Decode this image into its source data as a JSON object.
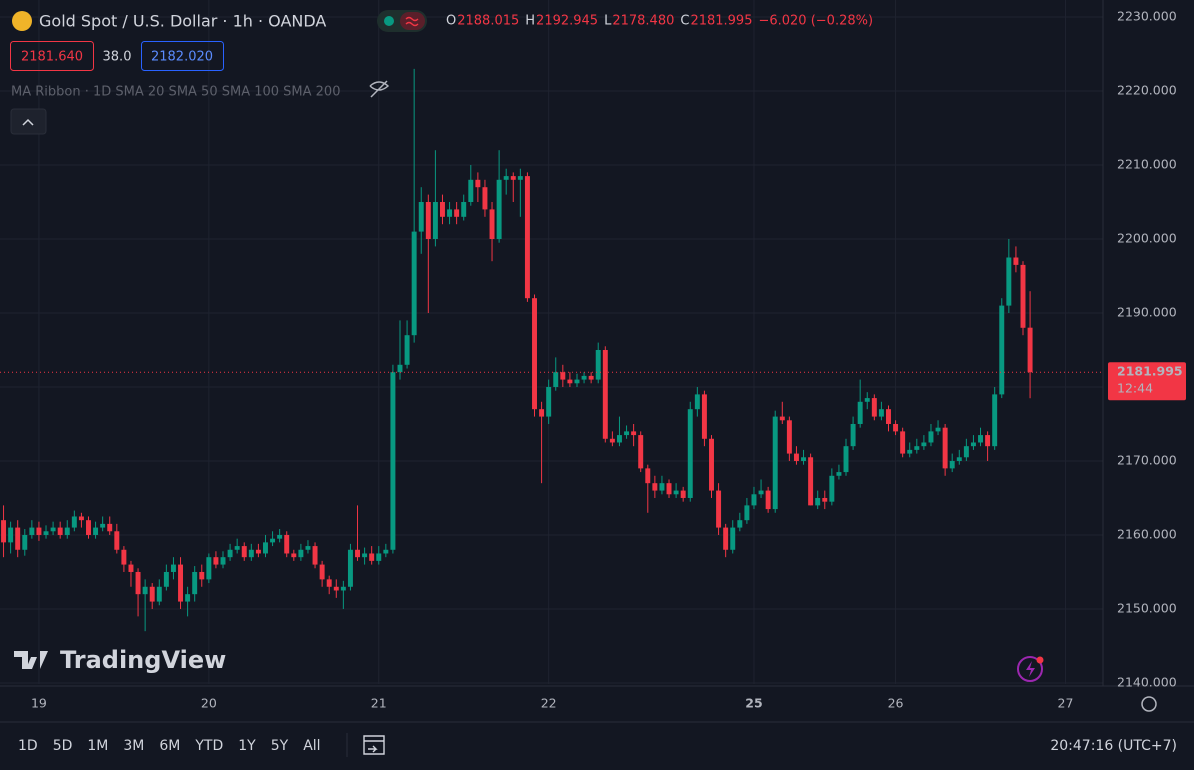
{
  "header": {
    "title": "Gold Spot / U.S. Dollar · 1h · OANDA",
    "legend": [
      {
        "key": "O",
        "value": "2188.015"
      },
      {
        "key": "H",
        "value": "2192.945"
      },
      {
        "key": "L",
        "value": "2178.480"
      },
      {
        "key": "C",
        "value": "2181.995"
      }
    ],
    "change": "−6.020 (−0.28%)",
    "bid": "2181.640",
    "spread": "38.0",
    "ask": "2182.020",
    "indicator": "MA Ribbon · 1D SMA 20 SMA 50 SMA 100 SMA 200"
  },
  "logo": "TradingView",
  "toolbar": {
    "ranges": [
      "1D",
      "5D",
      "1M",
      "3M",
      "6M",
      "YTD",
      "1Y",
      "5Y",
      "All"
    ],
    "clock": "20:47:16 (UTC+7)"
  },
  "chart_data": {
    "type": "candlestick",
    "up_color": "#089981",
    "down_color": "#f23645",
    "grid": true,
    "countdown": "12:44",
    "xlim": [
      -0.5,
      155.3
    ],
    "xticks": [
      {
        "value": 5,
        "label": "19"
      },
      {
        "value": 29,
        "label": "20"
      },
      {
        "value": 53,
        "label": "21"
      },
      {
        "value": 77,
        "label": "22"
      },
      {
        "value": 106,
        "label": "25"
      },
      {
        "value": 126,
        "label": "26"
      },
      {
        "value": 150,
        "label": "27"
      }
    ],
    "ylim": [
      2139.86,
      2232.3
    ],
    "yticks": [
      {
        "value": 2140,
        "label": "2140.000"
      },
      {
        "value": 2150,
        "label": "2150.000"
      },
      {
        "value": 2160,
        "label": "2160.000"
      },
      {
        "value": 2170,
        "label": "2170.000"
      },
      {
        "value": 2180,
        "label": "2180.000"
      },
      {
        "value": 2190,
        "label": "2190.000"
      },
      {
        "value": 2200,
        "label": "2200.000"
      },
      {
        "value": 2210,
        "label": "2210.000"
      },
      {
        "value": 2220,
        "label": "2220.000"
      },
      {
        "value": 2230,
        "label": "2230.000"
      }
    ],
    "open": [
      2162,
      2159,
      2161,
      2158,
      2160,
      2161,
      2160,
      2160.5,
      2161,
      2160,
      2161,
      2162.5,
      2162,
      2160,
      2161,
      2161.5,
      2160.5,
      2158,
      2156,
      2155,
      2152,
      2153,
      2151,
      2153,
      2155,
      2156,
      2151,
      2152,
      2155,
      2154,
      2157,
      2156,
      2157,
      2158,
      2158.5,
      2157,
      2158,
      2157.5,
      2159,
      2159.5,
      2160,
      2157.5,
      2157,
      2158,
      2158.5,
      2156,
      2154,
      2153,
      2152.5,
      2153,
      2158,
      2157,
      2157.5,
      2156.5,
      2157.5,
      2158,
      2182,
      2183,
      2187,
      2201,
      2205,
      2200,
      2205,
      2203,
      2204,
      2203,
      2205,
      2208,
      2207,
      2204,
      2200,
      2208,
      2208.5,
      2208,
      2208.5,
      2192,
      2177,
      2176,
      2180,
      2182,
      2181,
      2180.5,
      2181,
      2181.5,
      2181,
      2185,
      2173,
      2172.5,
      2173.5,
      2174,
      2173.5,
      2169,
      2167,
      2166,
      2167,
      2165.5,
      2166,
      2165,
      2177,
      2179,
      2173,
      2166,
      2161,
      2158,
      2161,
      2162,
      2164,
      2165.5,
      2166,
      2163.5,
      2176,
      2175.5,
      2171,
      2170,
      2170.5,
      2164,
      2165,
      2164.5,
      2168,
      2168.5,
      2172,
      2175,
      2178,
      2178.5,
      2176,
      2177,
      2175,
      2174,
      2171,
      2171.5,
      2172,
      2172.5,
      2174,
      2174.5,
      2169,
      2170,
      2170.5,
      2172,
      2172.5,
      2173.5,
      2172,
      2179,
      2191,
      2197.5,
      2196.5,
      2188.015
    ],
    "high": [
      2164,
      2161.8,
      2162,
      2160.8,
      2162,
      2161.8,
      2161.3,
      2161.8,
      2161.8,
      2162,
      2163.3,
      2163,
      2162.5,
      2161.8,
      2162.5,
      2162.5,
      2161.5,
      2158.5,
      2156.5,
      2155.5,
      2154,
      2153.5,
      2154,
      2156,
      2157,
      2157,
      2153,
      2155.8,
      2156,
      2157.5,
      2157.8,
      2157.8,
      2158.8,
      2159.5,
      2159,
      2158.8,
      2158.8,
      2160,
      2160.5,
      2160.8,
      2160.5,
      2158,
      2158.8,
      2159.3,
      2159,
      2156.5,
      2154.5,
      2154,
      2153.8,
      2158.8,
      2164,
      2158.3,
      2158.5,
      2158.5,
      2158.8,
      2183,
      2189,
      2189,
      2223,
      2207,
      2206,
      2212,
      2206,
      2205,
      2205,
      2206,
      2210,
      2209,
      2208,
      2205,
      2212,
      2209.5,
      2209,
      2209.5,
      2209,
      2192.5,
      2178,
      2181,
      2184,
      2183,
      2182,
      2181.8,
      2182,
      2182,
      2186,
      2185.5,
      2174,
      2176,
      2174.8,
      2175,
      2174,
      2169.5,
      2168,
      2168,
      2167.5,
      2167,
      2166.5,
      2178,
      2180,
      2179.5,
      2173.5,
      2167,
      2161.5,
      2162,
      2163,
      2165,
      2166.5,
      2167.5,
      2166.5,
      2176.8,
      2178,
      2176,
      2172,
      2171.5,
      2171,
      2166,
      2166,
      2169,
      2169.5,
      2173,
      2176,
      2181,
      2179.3,
      2179,
      2178,
      2177.5,
      2175.5,
      2174.5,
      2172.5,
      2173,
      2173.5,
      2175,
      2175.5,
      2175,
      2171,
      2171.5,
      2173,
      2173.5,
      2174.5,
      2174,
      2180,
      2192,
      2200,
      2199,
      2197,
      2192.945
    ],
    "low": [
      2157,
      2157.5,
      2157,
      2157.2,
      2159.5,
      2159.2,
      2159.5,
      2160,
      2159.5,
      2159.5,
      2160.5,
      2161,
      2159.5,
      2159.5,
      2160.5,
      2160,
      2157.5,
      2155,
      2153,
      2149,
      2147,
      2150,
      2150.5,
      2152.5,
      2154,
      2150,
      2149,
      2151,
      2153,
      2153.5,
      2155.5,
      2155.5,
      2156.5,
      2157.5,
      2156.5,
      2156.5,
      2157,
      2157,
      2158.5,
      2159,
      2157,
      2156.5,
      2156.5,
      2157.5,
      2155.5,
      2153,
      2152,
      2151.5,
      2150,
      2152.5,
      2156.5,
      2156,
      2156,
      2156,
      2157,
      2157.5,
      2181,
      2182.5,
      2186,
      2198,
      2190,
      2199,
      2202,
      2202,
      2202,
      2202.5,
      2204.5,
      2205,
      2203,
      2197,
      2199.5,
      2206,
      2205,
      2203,
      2191.5,
      2176,
      2167,
      2175,
      2179.5,
      2180,
      2180,
      2180,
      2180.5,
      2180.5,
      2180.5,
      2172.5,
      2172,
      2172,
      2173,
      2172,
      2168.5,
      2163,
      2165,
      2165.5,
      2165,
      2165,
      2164.5,
      2164.5,
      2176,
      2172,
      2165,
      2160,
      2157,
      2157.5,
      2160.5,
      2161.5,
      2163.5,
      2165,
      2163,
      2163,
      2175,
      2170,
      2169.5,
      2169.5,
      2164,
      2163.5,
      2163.5,
      2164,
      2167.5,
      2168,
      2171.5,
      2174.5,
      2177,
      2175.5,
      2175.5,
      2174,
      2173.5,
      2170.5,
      2170.5,
      2171,
      2171.5,
      2172,
      2173.5,
      2168,
      2168.5,
      2169.5,
      2170,
      2171.5,
      2172,
      2170,
      2171.5,
      2178.5,
      2190,
      2195.5,
      2187,
      2178.48
    ],
    "close": [
      2159,
      2161,
      2158,
      2160,
      2161,
      2160,
      2160.5,
      2161,
      2160,
      2161,
      2162.5,
      2162,
      2160,
      2161,
      2161.5,
      2160.5,
      2158,
      2156,
      2155,
      2152,
      2153,
      2151,
      2153,
      2155,
      2156,
      2151,
      2152,
      2155,
      2154,
      2157,
      2156,
      2157,
      2158,
      2158.5,
      2157,
      2158,
      2157.5,
      2159,
      2159.5,
      2160,
      2157.5,
      2157,
      2158,
      2158.5,
      2156,
      2154,
      2153,
      2152.5,
      2153,
      2158,
      2157,
      2157.5,
      2156.5,
      2157.5,
      2158,
      2182,
      2183,
      2187,
      2201,
      2205,
      2200,
      2205,
      2203,
      2204,
      2203,
      2205,
      2208,
      2207,
      2204,
      2200,
      2208,
      2208.5,
      2208,
      2208.5,
      2192,
      2177,
      2176,
      2180,
      2182,
      2181,
      2180.5,
      2181,
      2181.5,
      2181,
      2185,
      2173,
      2172.5,
      2173.5,
      2174,
      2173.5,
      2169,
      2167,
      2166,
      2167,
      2165.5,
      2166,
      2165,
      2177,
      2179,
      2173,
      2166,
      2161,
      2158,
      2161,
      2162,
      2164,
      2165.5,
      2166,
      2163.5,
      2176,
      2175.5,
      2171,
      2170,
      2170.5,
      2164,
      2165,
      2164.5,
      2168,
      2168.5,
      2172,
      2175,
      2178,
      2178.5,
      2176,
      2177,
      2175,
      2174,
      2171,
      2171.5,
      2172,
      2172.5,
      2174,
      2174.5,
      2169,
      2170,
      2170.5,
      2172,
      2172.5,
      2173.5,
      2172,
      2179,
      2191,
      2197.5,
      2196.5,
      2188,
      2181.995
    ]
  }
}
